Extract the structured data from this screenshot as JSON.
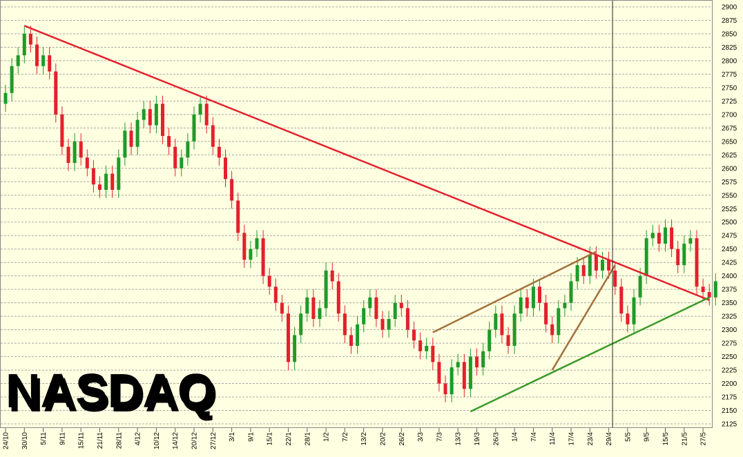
{
  "chart_data": {
    "type": "candlestick",
    "title": "NASDAQ",
    "categories": [
      "24/10",
      null,
      null,
      "30/10",
      null,
      null,
      "5/11",
      null,
      null,
      "9/11",
      null,
      null,
      "15/11",
      null,
      null,
      "21/11",
      null,
      null,
      "28/11",
      null,
      null,
      "4/12",
      null,
      null,
      "10/12",
      null,
      null,
      "14/12",
      null,
      null,
      "20/12",
      null,
      null,
      "27/12",
      null,
      null,
      "3/1",
      null,
      null,
      "9/1",
      null,
      null,
      "15/1",
      null,
      null,
      "22/1",
      null,
      null,
      "28/1",
      null,
      null,
      "1/2",
      null,
      null,
      "7/2",
      null,
      null,
      "13/2",
      null,
      null,
      "20/2",
      null,
      null,
      "26/2",
      null,
      null,
      "3/3",
      null,
      null,
      "7/3",
      null,
      null,
      "13/3",
      null,
      null,
      "19/3",
      null,
      null,
      "26/3",
      null,
      null,
      "1/4",
      null,
      null,
      "7/4",
      null,
      null,
      "11/4",
      null,
      null,
      "17/4",
      null,
      null,
      "23/4",
      null,
      null,
      "29/4",
      null,
      null,
      "5/5",
      null,
      null,
      "9/5",
      null,
      null,
      "15/5",
      null,
      null,
      "21/5",
      null,
      null,
      "27/5",
      null,
      null
    ],
    "open": [
      2720,
      2740,
      2790,
      2810,
      2850,
      2830,
      2790,
      2810,
      2780,
      2700,
      2640,
      2610,
      2650,
      2620,
      2600,
      2570,
      2560,
      2590,
      2560,
      2620,
      2670,
      2640,
      2690,
      2710,
      2680,
      2720,
      2660,
      2640,
      2600,
      2620,
      2650,
      2700,
      2720,
      2680,
      2640,
      2620,
      2580,
      2540,
      2480,
      2430,
      2450,
      2470,
      2400,
      2380,
      2350,
      2330,
      2240,
      2290,
      2330,
      2360,
      2320,
      2340,
      2410,
      2390,
      2330,
      2290,
      2270,
      2310,
      2340,
      2360,
      2320,
      2300,
      2320,
      2350,
      2340,
      2300,
      2280,
      2260,
      2270,
      2240,
      2200,
      2180,
      2230,
      2240,
      2190,
      2250,
      2230,
      2260,
      2300,
      2330,
      2290,
      2270,
      2330,
      2360,
      2340,
      2380,
      2350,
      2310,
      2290,
      2340,
      2350,
      2390,
      2420,
      2400,
      2440,
      2410,
      2430,
      2410,
      2380,
      2330,
      2310,
      2360,
      2400,
      2470,
      2480,
      2460,
      2490,
      2450,
      2420,
      2460,
      2470,
      2380,
      2370,
      2360
    ],
    "high": [
      2755,
      2805,
      2825,
      2865,
      2865,
      2845,
      2825,
      2825,
      2795,
      2715,
      2655,
      2665,
      2665,
      2635,
      2615,
      2585,
      2605,
      2605,
      2635,
      2685,
      2685,
      2705,
      2725,
      2725,
      2735,
      2735,
      2675,
      2655,
      2635,
      2665,
      2715,
      2735,
      2735,
      2695,
      2655,
      2635,
      2595,
      2555,
      2495,
      2465,
      2485,
      2485,
      2415,
      2395,
      2365,
      2345,
      2305,
      2345,
      2375,
      2375,
      2355,
      2425,
      2425,
      2405,
      2345,
      2305,
      2325,
      2355,
      2375,
      2375,
      2335,
      2335,
      2365,
      2365,
      2355,
      2315,
      2295,
      2285,
      2285,
      2255,
      2215,
      2245,
      2255,
      2255,
      2265,
      2265,
      2275,
      2315,
      2345,
      2345,
      2305,
      2345,
      2375,
      2375,
      2395,
      2395,
      2365,
      2325,
      2355,
      2365,
      2405,
      2435,
      2435,
      2455,
      2455,
      2445,
      2445,
      2425,
      2395,
      2345,
      2375,
      2415,
      2485,
      2495,
      2495,
      2505,
      2505,
      2465,
      2475,
      2485,
      2485,
      2395,
      2385,
      2405
    ],
    "low": [
      2705,
      2725,
      2775,
      2795,
      2815,
      2775,
      2775,
      2765,
      2685,
      2625,
      2595,
      2595,
      2605,
      2585,
      2555,
      2545,
      2545,
      2545,
      2545,
      2605,
      2625,
      2625,
      2675,
      2665,
      2665,
      2645,
      2625,
      2585,
      2585,
      2605,
      2635,
      2685,
      2665,
      2625,
      2605,
      2565,
      2525,
      2465,
      2415,
      2415,
      2435,
      2385,
      2365,
      2335,
      2315,
      2225,
      2225,
      2275,
      2315,
      2305,
      2305,
      2325,
      2375,
      2315,
      2275,
      2255,
      2255,
      2295,
      2325,
      2305,
      2285,
      2285,
      2305,
      2325,
      2285,
      2265,
      2245,
      2245,
      2225,
      2185,
      2165,
      2165,
      2215,
      2175,
      2175,
      2215,
      2215,
      2245,
      2285,
      2275,
      2255,
      2255,
      2315,
      2325,
      2325,
      2335,
      2295,
      2275,
      2275,
      2325,
      2335,
      2375,
      2385,
      2385,
      2395,
      2395,
      2395,
      2365,
      2315,
      2295,
      2295,
      2345,
      2385,
      2455,
      2445,
      2445,
      2435,
      2405,
      2405,
      2445,
      2365,
      2355,
      2345,
      2345
    ],
    "close": [
      2740,
      2790,
      2810,
      2850,
      2830,
      2790,
      2810,
      2780,
      2700,
      2640,
      2610,
      2650,
      2620,
      2600,
      2570,
      2560,
      2590,
      2560,
      2620,
      2670,
      2640,
      2690,
      2710,
      2680,
      2720,
      2660,
      2640,
      2600,
      2620,
      2650,
      2700,
      2720,
      2680,
      2640,
      2620,
      2580,
      2540,
      2480,
      2430,
      2450,
      2470,
      2400,
      2380,
      2350,
      2330,
      2240,
      2290,
      2330,
      2360,
      2320,
      2340,
      2410,
      2390,
      2330,
      2290,
      2270,
      2310,
      2340,
      2360,
      2320,
      2300,
      2320,
      2350,
      2340,
      2300,
      2280,
      2260,
      2270,
      2240,
      2200,
      2180,
      2230,
      2240,
      2190,
      2250,
      2230,
      2260,
      2300,
      2330,
      2290,
      2270,
      2330,
      2360,
      2340,
      2380,
      2350,
      2310,
      2290,
      2340,
      2350,
      2390,
      2420,
      2400,
      2440,
      2410,
      2430,
      2410,
      2380,
      2330,
      2310,
      2360,
      2400,
      2470,
      2480,
      2460,
      2490,
      2450,
      2420,
      2460,
      2470,
      2380,
      2370,
      2360,
      2390
    ],
    "up_color": "#1f9a2a",
    "down_color": "#e3202c",
    "ylim": [
      2125,
      2900
    ],
    "yticks": [
      2125,
      2150,
      2175,
      2200,
      2225,
      2250,
      2275,
      2300,
      2325,
      2350,
      2375,
      2400,
      2425,
      2450,
      2475,
      2500,
      2525,
      2550,
      2575,
      2600,
      2625,
      2650,
      2675,
      2700,
      2725,
      2750,
      2775,
      2800,
      2825,
      2850,
      2875,
      2900
    ],
    "grid": true,
    "trendlines": [
      {
        "color": "#e3202c",
        "x": [
          3,
          112
        ],
        "y": [
          2865,
          2355
        ]
      },
      {
        "color": "#3a9a2a",
        "x": [
          74,
          112
        ],
        "y": [
          2148,
          2360
        ]
      },
      {
        "color": "#a0703a",
        "x": [
          68,
          94
        ],
        "y": [
          2295,
          2445
        ]
      },
      {
        "color": "#a0703a",
        "x": [
          87,
          97
        ],
        "y": [
          2225,
          2420
        ]
      }
    ],
    "vline": 96.6
  }
}
